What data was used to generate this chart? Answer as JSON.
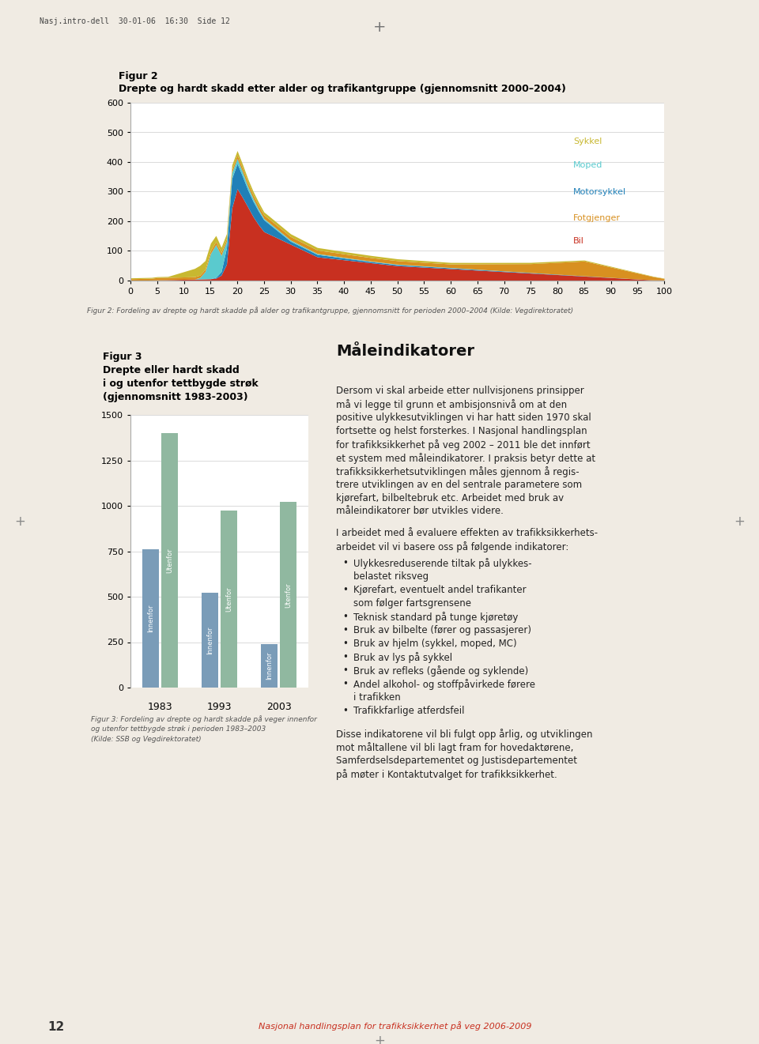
{
  "page_bg": "#f0ebe3",
  "chart_bg": "#ffffff",
  "header_text": "Nasj.intro-dell  30-01-06  16:30  Side 12",
  "fig2": {
    "title1": "Figur 2",
    "title2": "Drepte og hardt skadd etter alder og trafikantgruppe (gjennomsnitt 2000–2004)",
    "ylim": [
      0,
      600
    ],
    "yticks": [
      0,
      100,
      200,
      300,
      400,
      500,
      600
    ],
    "xlim": [
      0,
      100
    ],
    "xticks": [
      0,
      5,
      10,
      15,
      20,
      25,
      30,
      35,
      40,
      45,
      50,
      55,
      60,
      65,
      70,
      75,
      80,
      85,
      90,
      95,
      100
    ],
    "legend_labels": [
      "Sykkel",
      "Moped",
      "Motorsykkel",
      "Fotgjenger",
      "Bil"
    ],
    "legend_colors": [
      "#c8b830",
      "#5acace",
      "#2080b8",
      "#d89020",
      "#c83020"
    ],
    "caption": "Figur 2: Fordeling av drepte og hardt skadde på alder og trafikantgruppe, gjennomsnitt for perioden 2000–2004 (Kilde: Vegdirektoratet)"
  },
  "fig3": {
    "title1": "Figur 3",
    "title2": "Drepte eller hardt skadd",
    "title3": "i og utenfor tettbygde strøk",
    "title4": "(gjennomsnitt 1983-2003)",
    "ylim": [
      0,
      1500
    ],
    "yticks": [
      0,
      250,
      500,
      750,
      1000,
      1250,
      1500
    ],
    "years": [
      "1983",
      "1993",
      "2003"
    ],
    "innenfor_values": [
      760,
      520,
      240
    ],
    "utenfor_values": [
      1400,
      975,
      1020
    ],
    "innenfor_color": "#7a9cb8",
    "utenfor_color": "#90b8a0",
    "caption1": "Figur 3: Fordeling av drepte og hardt skadde på veger innenfor",
    "caption2": "og utenfor tettbygde strøk i perioden 1983–2003",
    "caption3": "(Kilde: SSB og Vegdirektoratet)"
  },
  "right": {
    "section_title": "Måleindikatorer",
    "para1": "Dersom vi skal arbeide etter nullvisjonens prinsipper\nmå vi legge til grunn et ambisjonsnivå om at den\npositive ulykkesutviklingen vi har hatt siden 1970 skal\nfortsette og helst forsterkes. I Nasjonal handlingsplan\nfor trafikksikkerhet på veg 2002 – 2011 ble det innført\net system med måleindikatorer. I praksis betyr dette at\ntrafikksikkerhetsutviklingen måles gjennom å regis-\ntrere utviklingen av en del sentrale parametere som\nkjørefart, bilbeltebruk etc. Arbeidet med bruk av\nmåleindikatorer bør utvikles videre.",
    "para2": "I arbeidet med å evaluere effekten av trafikksikkerhets-\narbeidet vil vi basere oss på følgende indikatorer:",
    "bullets": [
      "Ulykkesreduserende tiltak på ulykkes-\nbelastet riksveg",
      "Kjørefart, eventuelt andel trafikanter\nsom følger fartsgrensene",
      "Teknisk standard på tunge kjøretøy",
      "Bruk av bilbelte (fører og passasjerer)",
      "Bruk av hjelm (sykkel, moped, MC)",
      "Bruk av lys på sykkel",
      "Bruk av refleks (gående og syklende)",
      "Andel alkohol- og stoffpåvirkede førere\ni trafikken",
      "Trafikkfarlige atferdsfeil"
    ],
    "para3": "Disse indikatorene vil bli fulgt opp årlig, og utviklingen\nmot måltallene vil bli lagt fram for hovedaktørene,\nSamferdselsdepartementet og Justisdepartementet\npå møter i Kontaktutvalget for trafikksikkerhet.",
    "footer_text": "Nasjonal handlingsplan for trafikksikkerhet på veg 2006-2009",
    "page_num": "12"
  }
}
